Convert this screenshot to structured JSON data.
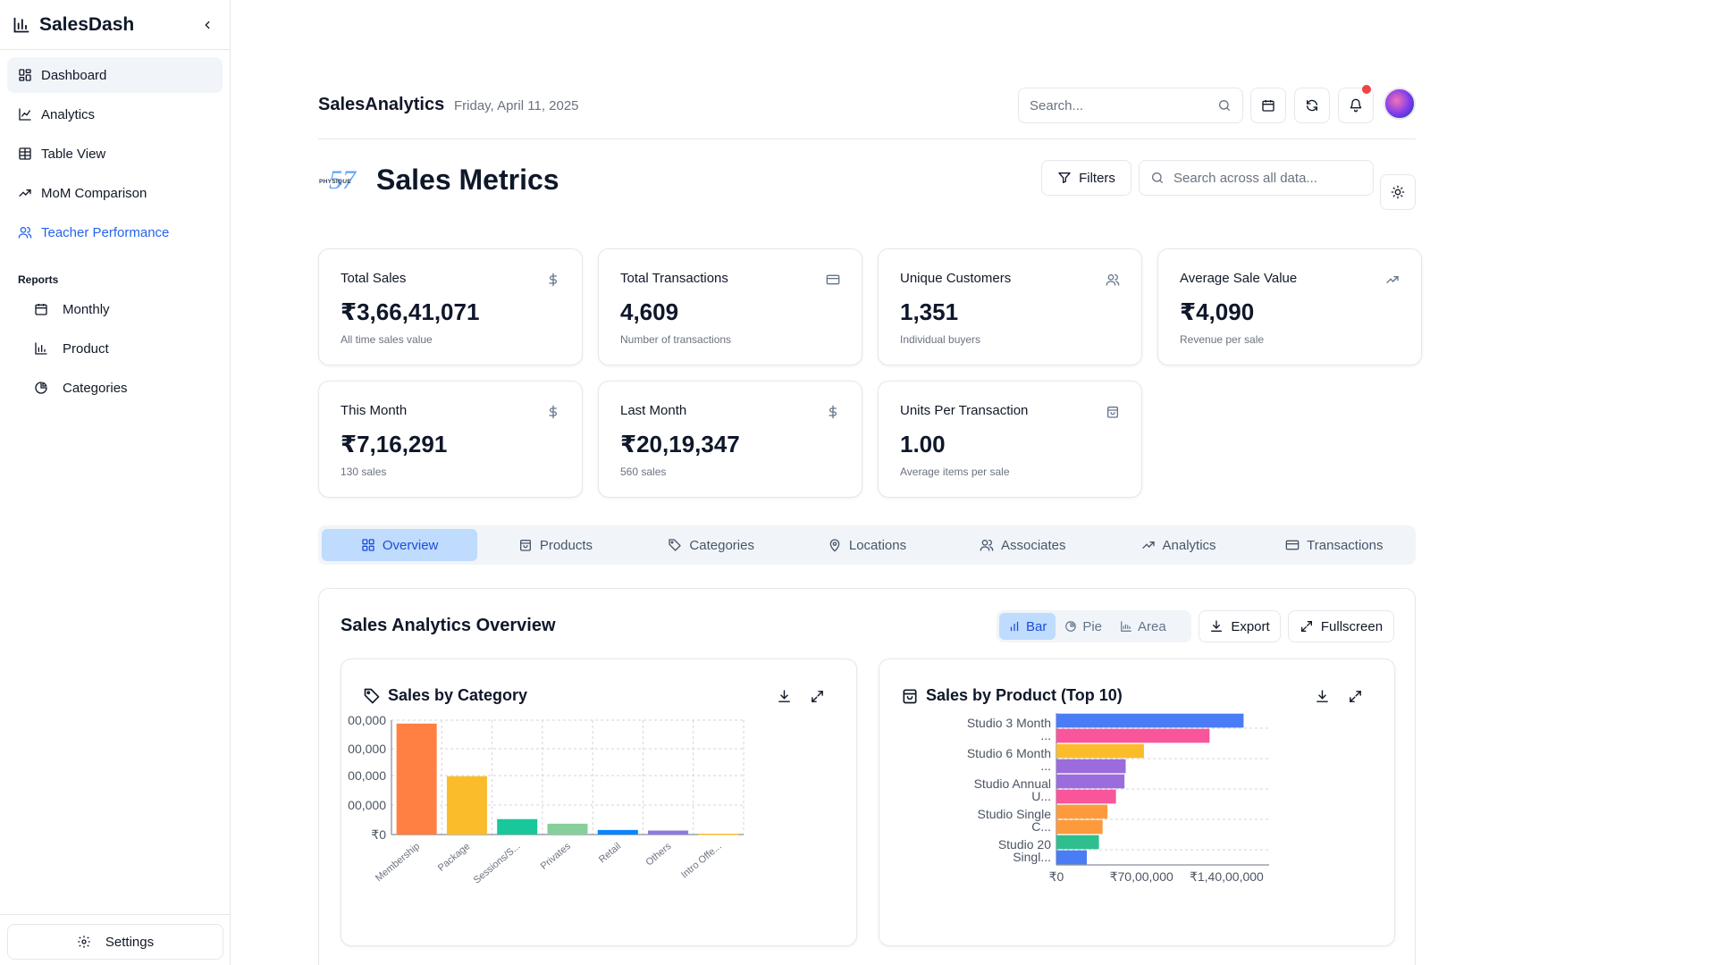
{
  "sidebar": {
    "brand": "SalesDash",
    "items": [
      {
        "label": "Dashboard"
      },
      {
        "label": "Analytics"
      },
      {
        "label": "Table View"
      },
      {
        "label": "MoM Comparison"
      },
      {
        "label": "Teacher Performance"
      }
    ],
    "reports_label": "Reports",
    "reports": [
      {
        "label": "Monthly"
      },
      {
        "label": "Product"
      },
      {
        "label": "Categories"
      }
    ],
    "settings_label": "Settings"
  },
  "topbar": {
    "title": "SalesAnalytics",
    "date": "Friday, April 11, 2025",
    "search_placeholder": "Search..."
  },
  "header": {
    "title": "Sales Metrics",
    "logo_text": "PHYSIQUE 57",
    "filters_label": "Filters",
    "search_placeholder": "Search across all data..."
  },
  "metrics": [
    {
      "title": "Total Sales",
      "value": "₹3,66,41,071",
      "sub": "All time sales value",
      "icon": "dollar-icon"
    },
    {
      "title": "Total Transactions",
      "value": "4,609",
      "sub": "Number of transactions",
      "icon": "credit-card-icon"
    },
    {
      "title": "Unique Customers",
      "value": "1,351",
      "sub": "Individual buyers",
      "icon": "users-icon"
    },
    {
      "title": "Average Sale Value",
      "value": "₹4,090",
      "sub": "Revenue per sale",
      "icon": "trending-up-icon"
    },
    {
      "title": "This Month",
      "value": "₹7,16,291",
      "sub": "130 sales",
      "icon": "dollar-icon"
    },
    {
      "title": "Last Month",
      "value": "₹20,19,347",
      "sub": "560 sales",
      "icon": "dollar-icon"
    },
    {
      "title": "Units Per Transaction",
      "value": "1.00",
      "sub": "Average items per sale",
      "icon": "shopping-bag-icon"
    }
  ],
  "tabs": [
    {
      "label": "Overview"
    },
    {
      "label": "Products"
    },
    {
      "label": "Categories"
    },
    {
      "label": "Locations"
    },
    {
      "label": "Associates"
    },
    {
      "label": "Analytics"
    },
    {
      "label": "Transactions"
    }
  ],
  "overview": {
    "title": "Sales Analytics Overview",
    "chart_types": [
      {
        "label": "Bar"
      },
      {
        "label": "Pie"
      },
      {
        "label": "Area"
      }
    ],
    "export_label": "Export",
    "fullscreen_label": "Fullscreen"
  },
  "chart_data": [
    {
      "type": "bar",
      "title": "Sales by Category",
      "categories": [
        "Membership",
        "Package",
        "Sessions/S...",
        "Privates",
        "Retail",
        "Others",
        "Intro Offe..."
      ],
      "values": [
        19400000,
        10200000,
        2700000,
        1900000,
        800000,
        700000,
        150000
      ],
      "colors": [
        "#ff8042",
        "#fbbc2c",
        "#19c79a",
        "#86cf9b",
        "#0a84ff",
        "#8b7be0",
        "#fbbc2c"
      ],
      "ytick_labels": [
        "₹0",
        "00,000",
        "00,000",
        "00,000",
        "00,000"
      ],
      "ylim": [
        0,
        20000000
      ],
      "grid": true
    },
    {
      "type": "bar",
      "orientation": "horizontal",
      "title": "Sales by Product (Top 10)",
      "categories": [
        "Studio 3 Month ...",
        "",
        "Studio 6 Month ...",
        "",
        "Studio Annual U...",
        "",
        "Studio Single C...",
        "",
        "Studio 20 Singl...",
        ""
      ],
      "values": [
        15400000,
        12600000,
        7200000,
        5700000,
        5600000,
        4900000,
        4200000,
        3800000,
        3500000,
        2500000
      ],
      "colors": [
        "#4a7cf5",
        "#f9559b",
        "#fbbc2c",
        "#9b6cdc",
        "#9b6cdc",
        "#f9559b",
        "#fd9a3c",
        "#fd9a3c",
        "#2fbf8f",
        "#4a7cf5"
      ],
      "xtick_labels": [
        "₹0",
        "₹70,00,000",
        "₹1,40,00,000"
      ],
      "xlim": [
        0,
        17500000
      ],
      "grid": true
    }
  ]
}
